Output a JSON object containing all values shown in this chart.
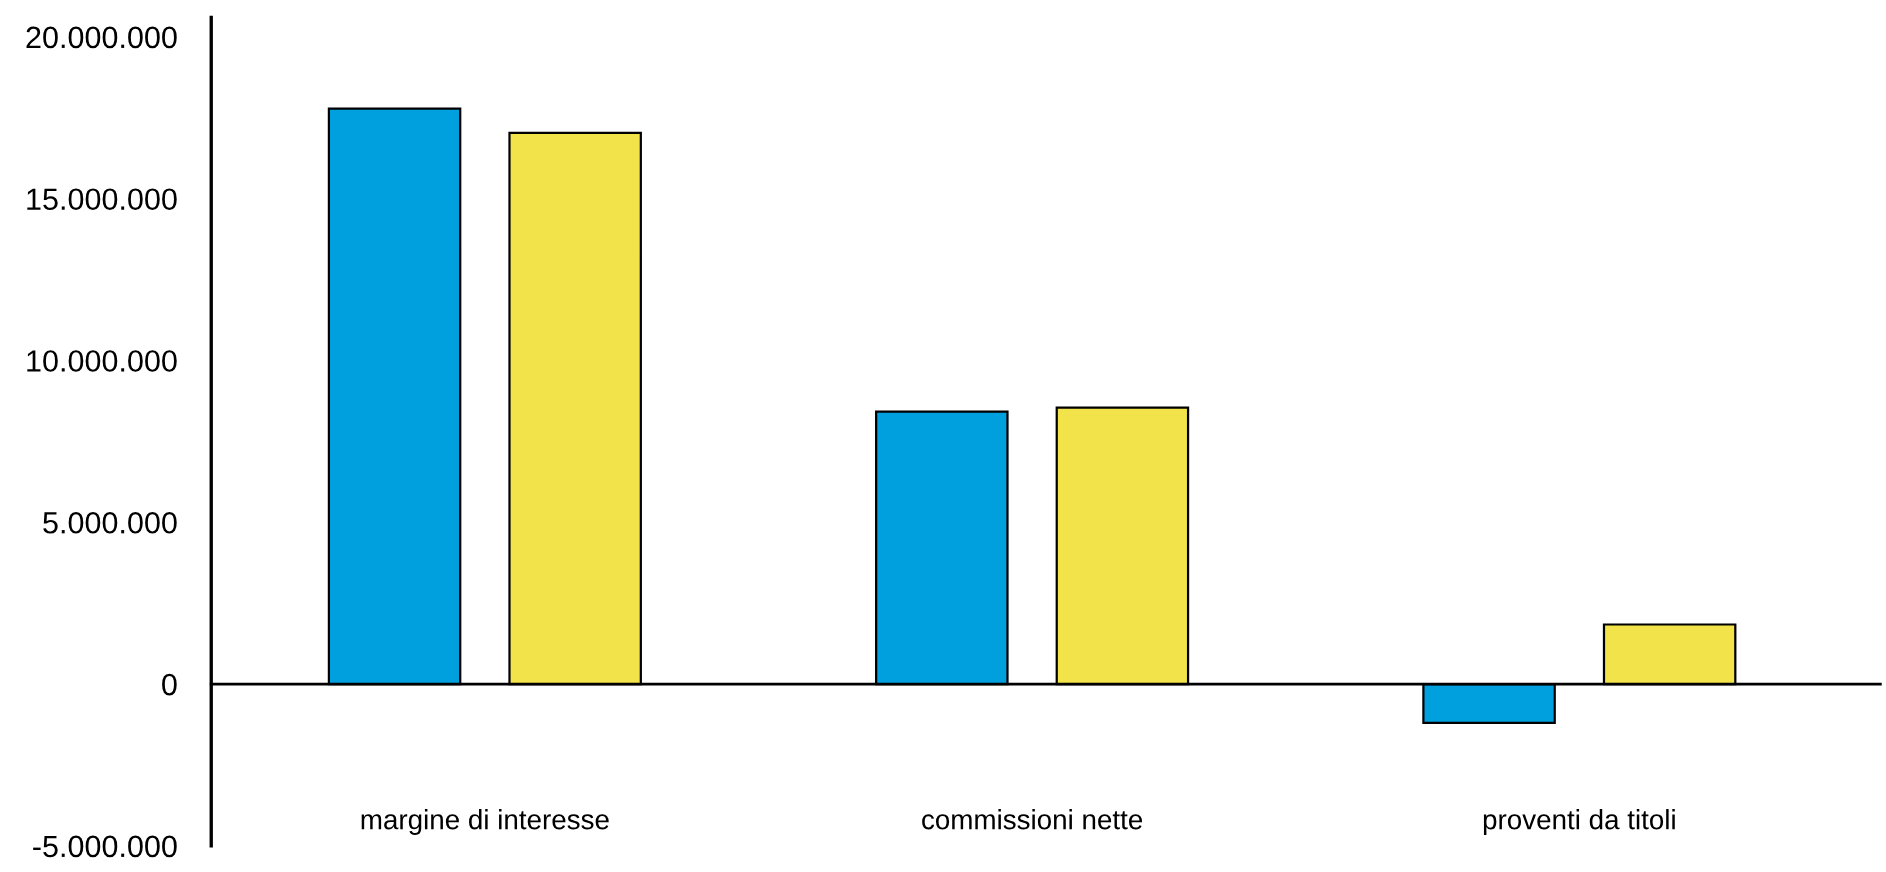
{
  "chart_data": {
    "type": "bar",
    "categories": [
      "margine di interesse",
      "commissioni nette",
      "proventi da titoli"
    ],
    "series": [
      {
        "color": "#00a0df",
        "values": [
          17780000,
          8420000,
          -1200000
        ]
      },
      {
        "color": "#f3e34b",
        "values": [
          17030000,
          8540000,
          1840000
        ]
      }
    ],
    "ylim": [
      -5000000,
      20600000
    ],
    "yticks": [
      {
        "value": -5000000,
        "label": "-5.000.000"
      },
      {
        "value": 0,
        "label": "0"
      },
      {
        "value": 5000000,
        "label": "5.000.000"
      },
      {
        "value": 10000000,
        "label": "10.000.000"
      },
      {
        "value": 15000000,
        "label": "15.000.000"
      },
      {
        "value": 20000000,
        "label": "20.000.000"
      }
    ],
    "legend": false
  }
}
